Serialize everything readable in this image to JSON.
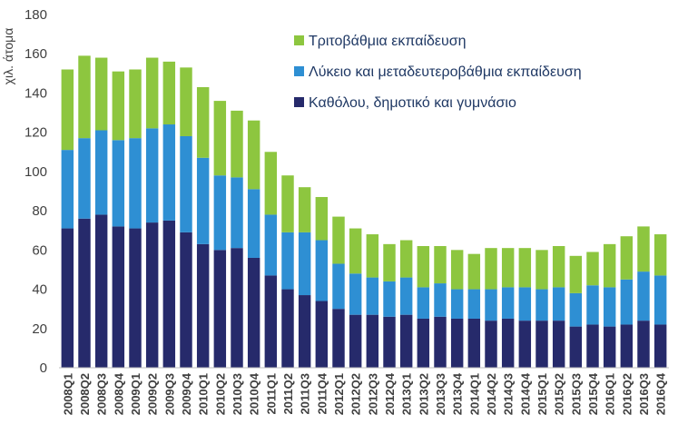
{
  "chart_data": {
    "type": "bar",
    "stacked": true,
    "ylabel": "χιλ. άτομα",
    "ylim": [
      0,
      180
    ],
    "yticks": [
      0,
      20,
      40,
      60,
      80,
      100,
      120,
      140,
      160,
      180
    ],
    "grid": false,
    "legend_position": "top-right",
    "categories": [
      "2008Q1",
      "2008Q2",
      "2008Q3",
      "2008Q4",
      "2009Q1",
      "2009Q2",
      "2009Q3",
      "2009Q4",
      "2010Q1",
      "2010Q2",
      "2010Q3",
      "2010Q4",
      "2011Q1",
      "2011Q2",
      "2011Q3",
      "2011Q4",
      "2012Q1",
      "2012Q2",
      "2012Q3",
      "2012Q4",
      "2013Q1",
      "2013Q2",
      "2013Q3",
      "2013Q4",
      "2014Q1",
      "2014Q2",
      "2014Q3",
      "2014Q4",
      "2015Q1",
      "2015Q2",
      "2015Q3",
      "2015Q4",
      "2016Q1",
      "2016Q2",
      "2016Q3",
      "2016Q4"
    ],
    "series": [
      {
        "name": "Καθόλου, δημοτικό και γυμνάσιο",
        "color": "#262a6b",
        "values": [
          71,
          76,
          78,
          72,
          71,
          74,
          75,
          69,
          63,
          60,
          61,
          56,
          47,
          40,
          37,
          34,
          30,
          27,
          27,
          26,
          27,
          25,
          26,
          25,
          25,
          24,
          25,
          24,
          24,
          24,
          21,
          22,
          21,
          22,
          24,
          22
        ]
      },
      {
        "name": "Λύκειο και μεταδευτεροβάθμια εκπαίδευση",
        "color": "#2e8fd3",
        "values": [
          40,
          41,
          43,
          44,
          46,
          48,
          49,
          49,
          44,
          38,
          36,
          35,
          31,
          29,
          32,
          31,
          23,
          21,
          19,
          18,
          19,
          16,
          17,
          15,
          15,
          16,
          16,
          17,
          16,
          17,
          17,
          20,
          20,
          23,
          25,
          25
        ]
      },
      {
        "name": "Τριτοβάθμια εκπαίδευση",
        "color": "#8dc63f",
        "values": [
          41,
          42,
          37,
          35,
          35,
          36,
          32,
          35,
          36,
          38,
          34,
          35,
          32,
          29,
          23,
          22,
          24,
          23,
          22,
          19,
          19,
          21,
          19,
          20,
          18,
          21,
          20,
          20,
          20,
          21,
          19,
          17,
          22,
          22,
          23,
          21
        ]
      }
    ]
  }
}
